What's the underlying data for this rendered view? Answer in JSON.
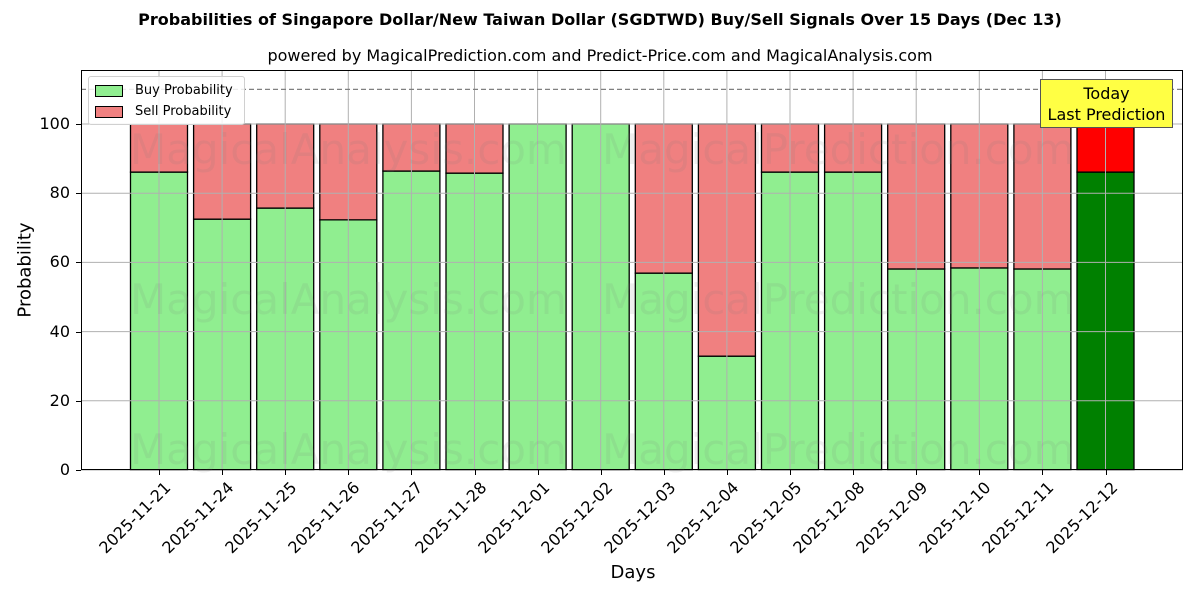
{
  "chart_data": {
    "type": "bar",
    "stacked": true,
    "title": "Probabilities of Singapore Dollar/New Taiwan Dollar (SGDTWD) Buy/Sell Signals Over 15 Days (Dec 13)",
    "subtitle": "powered by MagicalPrediction.com and Predict-Price.com and MagicalAnalysis.com",
    "xlabel": "Days",
    "ylabel": "Probability",
    "ylim": [
      0,
      115
    ],
    "yticks": [
      0,
      20,
      40,
      60,
      80,
      100
    ],
    "grid": true,
    "legend_position": "upper left",
    "reference_line": {
      "y": 110,
      "style": "dashed",
      "color": "#808080"
    },
    "categories": [
      "2025-11-21",
      "2025-11-24",
      "2025-11-25",
      "2025-11-26",
      "2025-11-27",
      "2025-11-28",
      "2025-12-01",
      "2025-12-02",
      "2025-12-03",
      "2025-12-04",
      "2025-12-05",
      "2025-12-08",
      "2025-12-09",
      "2025-12-10",
      "2025-12-11",
      "2025-12-12"
    ],
    "series": [
      {
        "name": "Buy Probability",
        "color": "#90ee90",
        "values": [
          86.1,
          72.5,
          75.7,
          72.3,
          86.4,
          85.8,
          100,
          100,
          56.9,
          32.9,
          86.1,
          86.1,
          58.1,
          58.4,
          58.1,
          86.1
        ]
      },
      {
        "name": "Sell Probability",
        "color": "#f08080",
        "values": [
          13.9,
          27.5,
          24.3,
          27.7,
          13.6,
          14.2,
          0,
          0,
          43.1,
          67.1,
          13.9,
          13.9,
          41.9,
          41.6,
          41.9,
          13.9
        ]
      }
    ],
    "highlight": {
      "index": 15,
      "buy_color": "#008000",
      "sell_color": "#ff0000"
    },
    "annotation": {
      "text_line1": "Today",
      "text_line2": "Last Prediction",
      "background": "#ffff44"
    }
  },
  "legend": {
    "buy": "Buy Probability",
    "sell": "Sell Probability"
  },
  "watermarks": [
    "MagicalAnalysis.com",
    "MagicalPrediction.com"
  ]
}
